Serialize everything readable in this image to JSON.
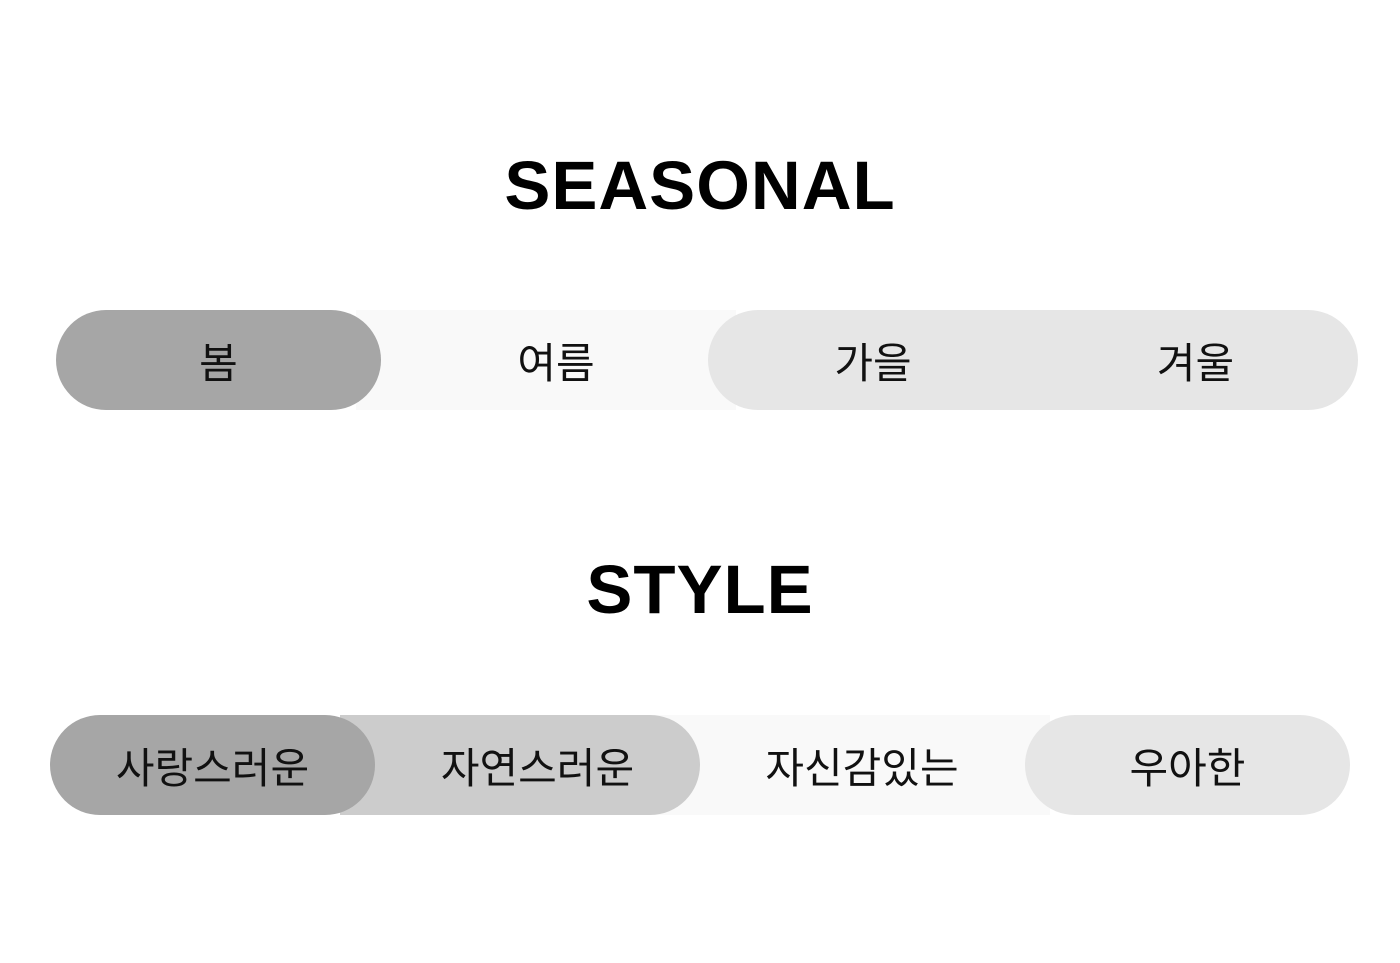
{
  "seasonal": {
    "title": "SEASONAL",
    "options": [
      {
        "label": "봄",
        "state": "selected",
        "color": "#a6a6a6"
      },
      {
        "label": "여름",
        "state": "default",
        "color": "#f9f9f9"
      },
      {
        "label": "가을",
        "state": "default",
        "color": "#e6e6e6"
      },
      {
        "label": "겨울",
        "state": "default",
        "color": "#e6e6e6"
      }
    ]
  },
  "style": {
    "title": "STYLE",
    "options": [
      {
        "label": "사랑스러운",
        "state": "selected",
        "color": "#a6a6a6"
      },
      {
        "label": "자연스러운",
        "state": "default",
        "color": "#cccccc"
      },
      {
        "label": "자신감있는",
        "state": "default",
        "color": "#f9f9f9"
      },
      {
        "label": "우아한",
        "state": "default",
        "color": "#e6e6e6"
      }
    ]
  }
}
